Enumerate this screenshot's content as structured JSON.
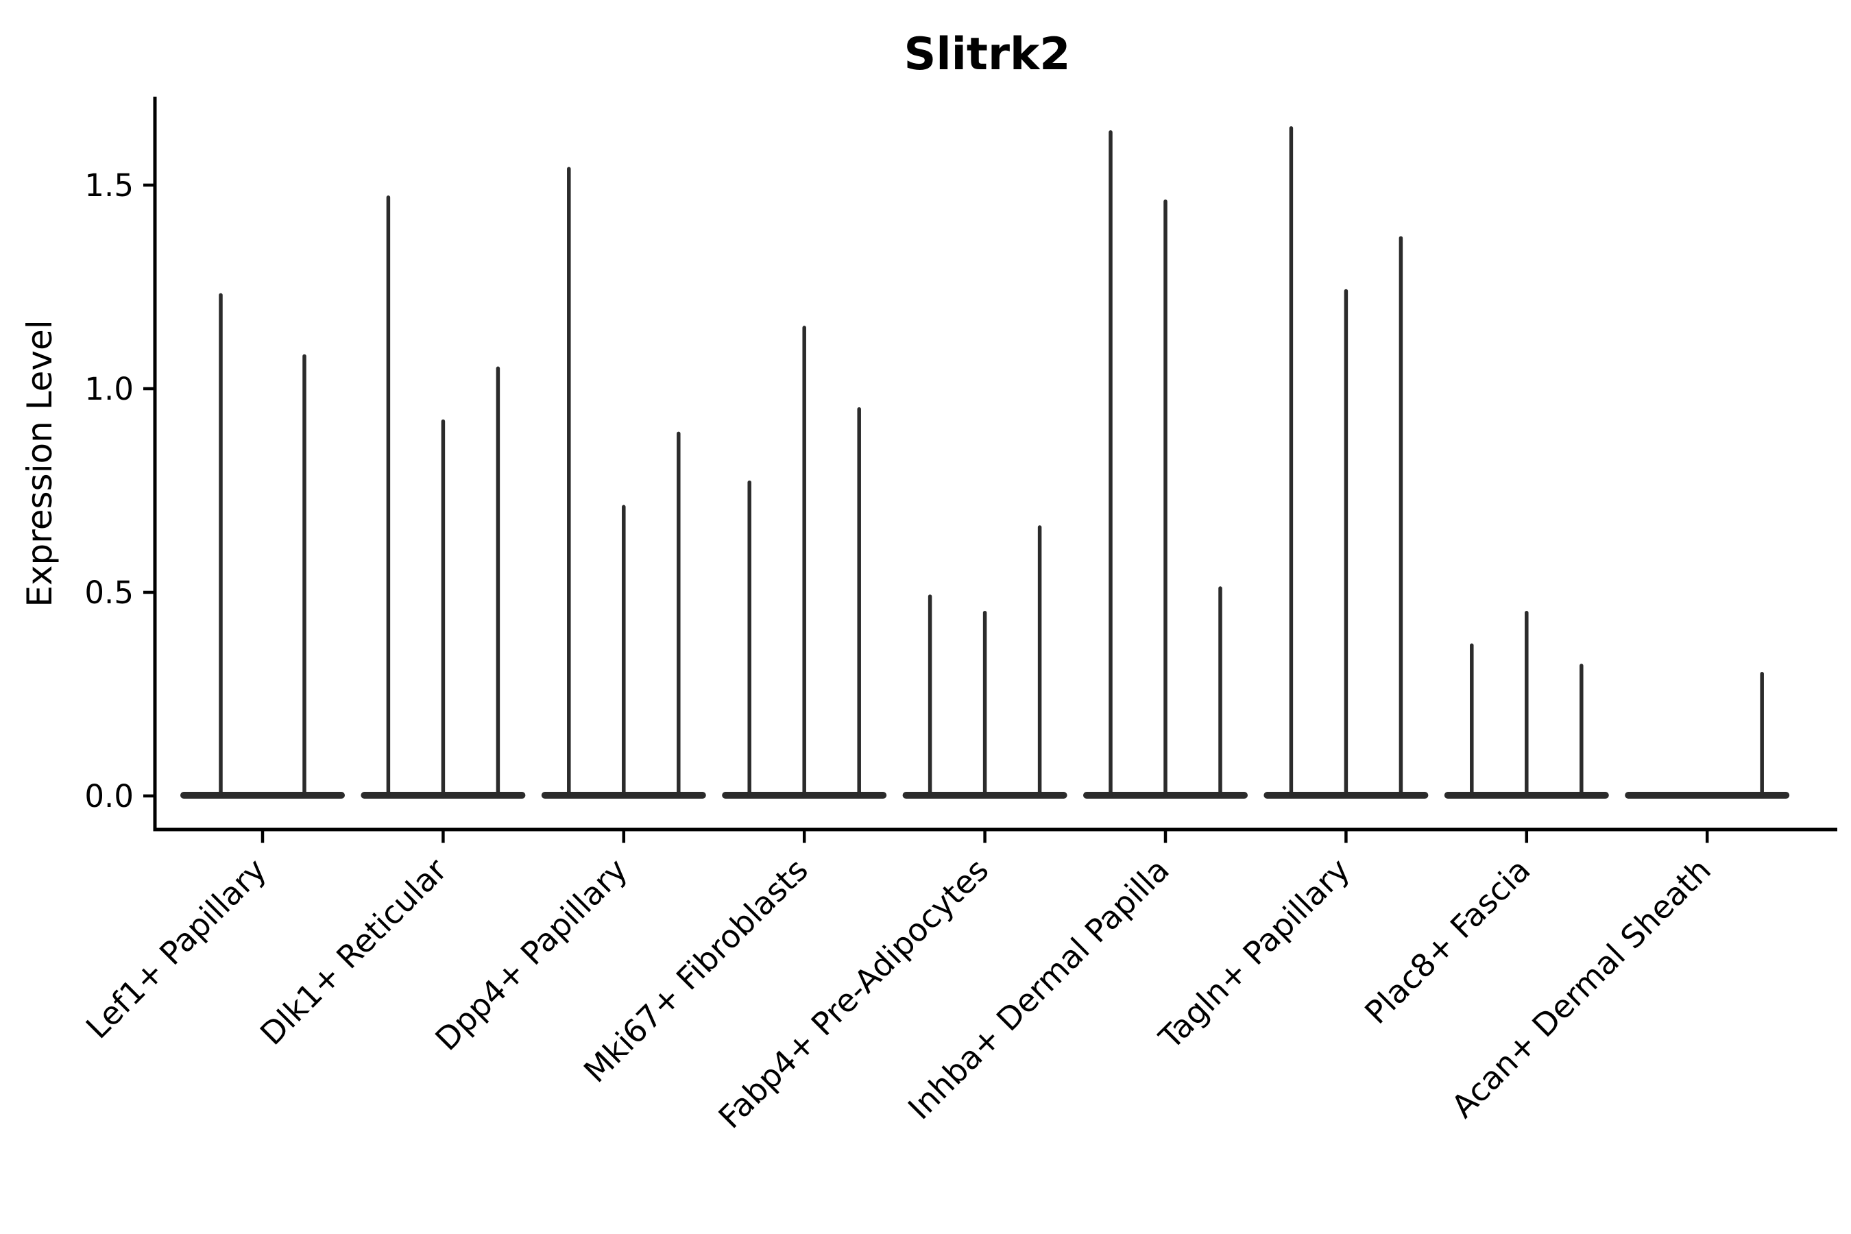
{
  "chart_data": {
    "type": "violin",
    "title": "Slitrk2",
    "ylabel": "Expression Level",
    "xlabel": "",
    "ylim": [
      -0.08,
      1.72
    ],
    "yticks": [
      0.0,
      0.5,
      1.0,
      1.5
    ],
    "grid": false,
    "legend": null,
    "xtick_rotation": 45,
    "violin_color": "#2b2b2b",
    "axis_color": "#000000",
    "description": "Single-cell expression violin plot; each category shows 2-3 thin spike-shaped violins (one per sample) with a wide flat base at 0 expression; violin_maxima give the top expression value reached by each spike (0 = flat violin, no spike).",
    "categories": [
      "Lef1+ Papillary",
      "Dlk1+ Reticular",
      "Dpp4+ Papillary",
      "Mki67+ Fibroblasts",
      "Fabp4+ Pre-Adipocytes",
      "Inhba+ Dermal Papilla",
      "Tagln+ Papillary",
      "Plac8+ Fascia",
      "Acan+ Dermal Sheath"
    ],
    "groups": [
      {
        "category": "Lef1+ Papillary",
        "violin_maxima": [
          1.23,
          1.08
        ]
      },
      {
        "category": "Dlk1+ Reticular",
        "violin_maxima": [
          1.47,
          0.92,
          1.05
        ]
      },
      {
        "category": "Dpp4+ Papillary",
        "violin_maxima": [
          1.54,
          0.71,
          0.89
        ]
      },
      {
        "category": "Mki67+ Fibroblasts",
        "violin_maxima": [
          0.77,
          1.15,
          0.95
        ]
      },
      {
        "category": "Fabp4+ Pre-Adipocytes",
        "violin_maxima": [
          0.49,
          0.45,
          0.66
        ]
      },
      {
        "category": "Inhba+ Dermal Papilla",
        "violin_maxima": [
          1.63,
          1.46,
          0.51
        ]
      },
      {
        "category": "Tagln+ Papillary",
        "violin_maxima": [
          1.64,
          1.24,
          1.37
        ]
      },
      {
        "category": "Plac8+ Fascia",
        "violin_maxima": [
          0.37,
          0.45,
          0.32
        ]
      },
      {
        "category": "Acan+ Dermal Sheath",
        "violin_maxima": [
          0,
          0,
          0.3
        ]
      }
    ]
  }
}
